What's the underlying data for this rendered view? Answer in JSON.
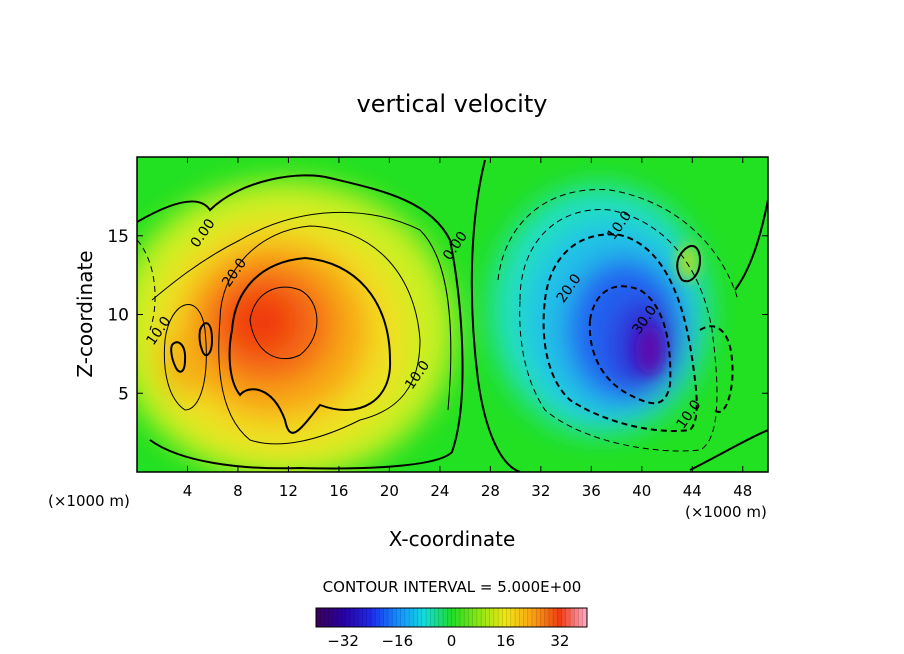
{
  "chart_data": {
    "type": "heatmap",
    "title": "vertical velocity",
    "xlabel": "X-coordinate",
    "ylabel": "Z-coordinate",
    "x_unit_left": "(×1000 m)",
    "x_unit_right": "(×1000 m)",
    "xlim": [
      0,
      50
    ],
    "ylim": [
      0,
      20
    ],
    "x_ticks": [
      "4",
      "8",
      "12",
      "16",
      "20",
      "24",
      "28",
      "32",
      "36",
      "40",
      "44",
      "48"
    ],
    "x_tick_values": [
      4,
      8,
      12,
      16,
      20,
      24,
      28,
      32,
      36,
      40,
      44,
      48
    ],
    "y_ticks": [
      "5",
      "10",
      "15"
    ],
    "y_tick_values": [
      5,
      10,
      15
    ],
    "contour_interval_text": "CONTOUR INTERVAL = 5.000E+00",
    "contour_interval": 5,
    "colorbar": {
      "range": [
        -40,
        40
      ],
      "tick_labels": [
        "−32",
        "−16",
        "0",
        "16",
        "32"
      ],
      "tick_values": [
        -32,
        -16,
        0,
        16,
        32
      ]
    },
    "contour_labels": [
      {
        "text": "0.00",
        "x": 5.5,
        "z": 15.0
      },
      {
        "text": "0.00",
        "x": 25.5,
        "z": 14.2
      },
      {
        "text": "10.0",
        "x": 2.0,
        "z": 8.8
      },
      {
        "text": "20.0",
        "x": 8.0,
        "z": 12.5
      },
      {
        "text": "10.0",
        "x": 22.5,
        "z": 6.0
      },
      {
        "text": "10.0",
        "x": 38.5,
        "z": 15.5
      },
      {
        "text": "20.0",
        "x": 34.5,
        "z": 11.5
      },
      {
        "text": "30.0",
        "x": 40.5,
        "z": 9.5
      },
      {
        "text": "10.0",
        "x": 44.0,
        "z": 3.5
      }
    ],
    "features": [
      {
        "sign": "updraft",
        "peak_value": 30,
        "center": [
          9.5,
          9.5
        ]
      },
      {
        "sign": "downdraft",
        "peak_value": -37,
        "center": [
          40.5,
          8.0
        ]
      }
    ],
    "colors": {
      "background_zero": "#20e020",
      "max_positive": "#f03010",
      "max_negative": "#4a10c0"
    }
  }
}
